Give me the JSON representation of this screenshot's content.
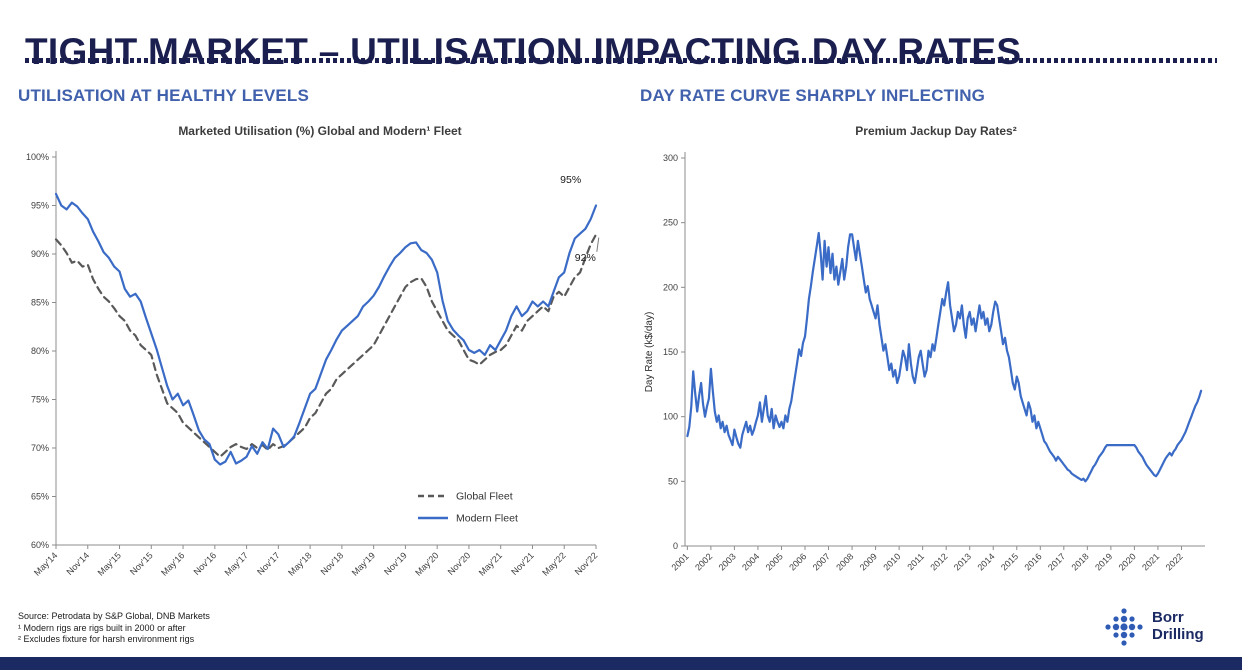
{
  "slide": {
    "title": "TIGHT MARKET – UTILISATION IMPACTING DAY RATES",
    "left_heading": "UTILISATION AT HEALTHY LEVELS",
    "right_heading": "DAY RATE CURVE SHARPLY INFLECTING",
    "footnotes": [
      "Source: Petrodata by S&P Global, DNB Markets",
      "¹ Modern rigs are rigs built in 2000 or after",
      "² Excludes fixture for harsh environment rigs"
    ],
    "logo": {
      "line1": "Borr",
      "line2": "Drilling"
    }
  },
  "colors": {
    "navy": "#1a1f4f",
    "heading_blue": "#4161ac",
    "line_blue": "#3a6bc6",
    "line_gray": "#595959",
    "axis_gray": "#8c8c8c",
    "bottom_bar": "#1b2a62"
  },
  "chart_data": [
    {
      "type": "line",
      "title": "Marketed Utilisation (%) Global and Modern¹ Fleet",
      "xlabel": "",
      "ylabel": "",
      "grid": false,
      "legend_position": "inside-bottom-right",
      "x_start": 2014.3333,
      "x_step": 0.0833333,
      "x_ticks": {
        "start": 2014.3333,
        "interval": 0.5,
        "labels": [
          "May'14",
          "Nov'14",
          "May'15",
          "Nov'15",
          "May'16",
          "Nov'16",
          "May'17",
          "Nov'17",
          "May'18",
          "Nov'18",
          "May'19",
          "Nov'19",
          "May'20",
          "Nov'20",
          "May'21",
          "Nov'21",
          "May'22",
          "Nov'22"
        ]
      },
      "y": {
        "min": 60,
        "max": 100,
        "step": 5,
        "suffix": "%"
      },
      "series": [
        {
          "name": "Global Fleet",
          "dash": true,
          "color": "#595959",
          "values": [
            91.5,
            90.9,
            90.1,
            89.1,
            89.3,
            88.7,
            88.9,
            87.4,
            86.4,
            85.6,
            85.1,
            84.4,
            83.6,
            83.1,
            82.1,
            81.6,
            80.6,
            80.1,
            79.6,
            77.6,
            76.1,
            74.6,
            74.1,
            73.6,
            72.6,
            72.1,
            71.6,
            71.1,
            70.6,
            70.1,
            69.6,
            69.1,
            69.6,
            70.1,
            70.4,
            70.1,
            69.9,
            70.4,
            70.0,
            70.3,
            69.8,
            70.4,
            70.0,
            70.2,
            70.6,
            71.1,
            71.6,
            72.1,
            73.1,
            73.6,
            74.6,
            75.6,
            76.1,
            77.1,
            77.6,
            78.1,
            78.6,
            79.1,
            79.6,
            80.1,
            80.6,
            81.6,
            82.6,
            83.6,
            84.6,
            85.6,
            86.6,
            87.1,
            87.4,
            87.5,
            86.6,
            85.1,
            84.1,
            83.1,
            82.1,
            81.6,
            81.1,
            80.1,
            79.1,
            78.9,
            78.6,
            79.1,
            79.6,
            79.9,
            80.1,
            80.6,
            81.6,
            82.6,
            82.1,
            83.1,
            83.6,
            84.1,
            84.6,
            84.1,
            85.6,
            86.1,
            85.6,
            86.6,
            87.6,
            88.1,
            89.6,
            91.0,
            92.0
          ]
        },
        {
          "name": "Modern Fleet",
          "dash": false,
          "color": "#3a6bc6",
          "values": [
            96.2,
            95.0,
            94.6,
            95.3,
            94.9,
            94.2,
            93.6,
            92.3,
            91.3,
            90.2,
            89.6,
            88.7,
            88.2,
            86.4,
            85.6,
            85.9,
            85.1,
            83.4,
            81.8,
            80.2,
            78.3,
            76.4,
            75.0,
            75.6,
            74.4,
            74.9,
            73.4,
            71.8,
            70.9,
            70.4,
            68.8,
            68.3,
            68.6,
            69.6,
            68.4,
            68.7,
            69.1,
            70.2,
            69.4,
            70.6,
            69.9,
            72.0,
            71.4,
            70.1,
            70.6,
            71.2,
            72.6,
            74.1,
            75.6,
            76.1,
            77.6,
            79.1,
            80.1,
            81.2,
            82.1,
            82.6,
            83.1,
            83.6,
            84.6,
            85.1,
            85.7,
            86.6,
            87.7,
            88.7,
            89.6,
            90.1,
            90.7,
            91.1,
            91.2,
            90.4,
            90.1,
            89.4,
            88.1,
            85.2,
            83.1,
            82.2,
            81.6,
            81.1,
            80.1,
            79.8,
            80.1,
            79.6,
            80.6,
            80.1,
            81.1,
            82.1,
            83.6,
            84.6,
            83.6,
            84.1,
            85.1,
            84.6,
            85.1,
            84.6,
            86.1,
            87.6,
            88.1,
            90.1,
            91.6,
            92.1,
            92.6,
            93.6,
            95.0
          ]
        }
      ],
      "annotations": [
        {
          "text": "95%",
          "x": 2022.6,
          "y": 97.3
        },
        {
          "text": "92%",
          "x": 2022.83,
          "y": 89.3,
          "leader_y": 92
        }
      ]
    },
    {
      "type": "line",
      "title": "Premium Jackup Day Rates²",
      "xlabel": "",
      "ylabel": "Day Rate (k$/day)",
      "grid": false,
      "legend_position": "none",
      "x_start": 2001.0,
      "x_step": 0.0833333,
      "x_ticks": {
        "start": 2001,
        "interval": 1,
        "labels": [
          "2001",
          "2002",
          "2003",
          "2004",
          "2005",
          "2006",
          "2007",
          "2008",
          "2009",
          "2010",
          "2011",
          "2012",
          "2013",
          "2014",
          "2015",
          "2016",
          "2017",
          "2018",
          "2019",
          "2020",
          "2021",
          "2022"
        ]
      },
      "y": {
        "min": 0,
        "max": 300,
        "step": 50,
        "suffix": ""
      },
      "series": [
        {
          "name": "Premium Jackup Day Rate",
          "dash": false,
          "color": "#3a6bc6",
          "values": [
            85,
            92,
            108,
            135,
            118,
            104,
            116,
            126,
            110,
            100,
            108,
            114,
            137,
            120,
            104,
            96,
            101,
            91,
            96,
            88,
            93,
            86,
            82,
            78,
            90,
            84,
            79,
            76,
            86,
            91,
            96,
            88,
            93,
            86,
            90,
            96,
            101,
            111,
            96,
            106,
            116,
            101,
            96,
            106,
            91,
            101,
            96,
            92,
            96,
            91,
            101,
            96,
            106,
            112,
            122,
            132,
            142,
            152,
            147,
            157,
            162,
            176,
            191,
            201,
            212,
            222,
            232,
            242,
            226,
            206,
            236,
            216,
            231,
            211,
            226,
            206,
            216,
            202,
            212,
            222,
            206,
            216,
            231,
            241,
            241,
            231,
            221,
            236,
            226,
            216,
            206,
            196,
            201,
            191,
            186,
            181,
            176,
            186,
            171,
            161,
            151,
            156,
            146,
            136,
            141,
            131,
            136,
            126,
            131,
            141,
            151,
            146,
            136,
            156,
            141,
            131,
            126,
            136,
            146,
            151,
            141,
            131,
            136,
            151,
            146,
            156,
            151,
            161,
            171,
            181,
            191,
            186,
            196,
            204,
            186,
            176,
            166,
            171,
            181,
            176,
            186,
            171,
            161,
            176,
            181,
            171,
            176,
            166,
            176,
            186,
            176,
            181,
            171,
            176,
            166,
            171,
            181,
            189,
            186,
            176,
            166,
            156,
            161,
            151,
            146,
            136,
            126,
            121,
            131,
            126,
            116,
            111,
            106,
            101,
            111,
            106,
            96,
            101,
            91,
            96,
            91,
            86,
            81,
            79,
            76,
            73,
            71,
            69,
            66,
            69,
            67,
            65,
            63,
            61,
            59,
            58,
            56,
            55,
            54,
            53,
            52,
            51,
            52,
            50,
            52,
            55,
            58,
            61,
            63,
            66,
            69,
            71,
            73,
            76,
            78,
            78,
            78,
            78,
            78,
            78,
            78,
            78,
            78,
            78,
            78,
            78,
            78,
            78,
            78,
            76,
            73,
            71,
            69,
            66,
            63,
            61,
            59,
            57,
            55,
            54,
            56,
            59,
            62,
            65,
            68,
            70,
            72,
            70,
            73,
            75,
            78,
            80,
            82,
            85,
            88,
            92,
            96,
            100,
            104,
            108,
            111,
            115,
            120
          ]
        }
      ],
      "annotations": []
    }
  ]
}
